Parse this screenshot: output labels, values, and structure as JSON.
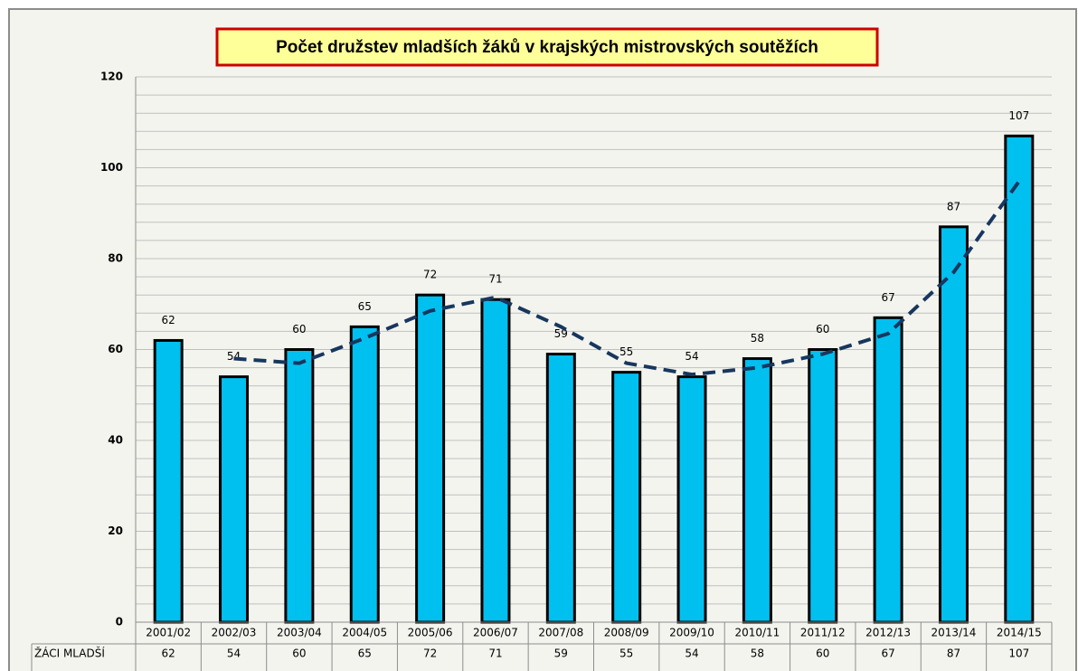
{
  "chart_data": {
    "type": "bar",
    "title": "Počet družstev mladších žáků v krajských mistrovských soutěžích",
    "categories": [
      "2001/02",
      "2002/03",
      "2003/04",
      "2004/05",
      "2005/06",
      "2006/07",
      "2007/08",
      "2008/09",
      "2009/10",
      "2010/11",
      "2011/12",
      "2012/13",
      "2013/14",
      "2014/15"
    ],
    "series": [
      {
        "name": "ŽÁCI MLADŠÍ",
        "color": "#00c0f0",
        "values": [
          62,
          54,
          60,
          65,
          72,
          71,
          59,
          55,
          54,
          58,
          60,
          67,
          87,
          107
        ]
      }
    ],
    "trend": {
      "color": "#17375e",
      "values": [
        null,
        58,
        57,
        62.5,
        68.5,
        71.5,
        65,
        57,
        54.5,
        56,
        59,
        63.5,
        77,
        97
      ]
    },
    "ylim": [
      0,
      120
    ],
    "yticks": [
      0,
      20,
      40,
      60,
      80,
      100,
      120
    ],
    "yminor": [
      4,
      8,
      12,
      16,
      24,
      28,
      32,
      36,
      44,
      48,
      52,
      56,
      64,
      68,
      72,
      76,
      84,
      88,
      92,
      96,
      104,
      108,
      112,
      116
    ],
    "grid": true,
    "data_table": true
  }
}
